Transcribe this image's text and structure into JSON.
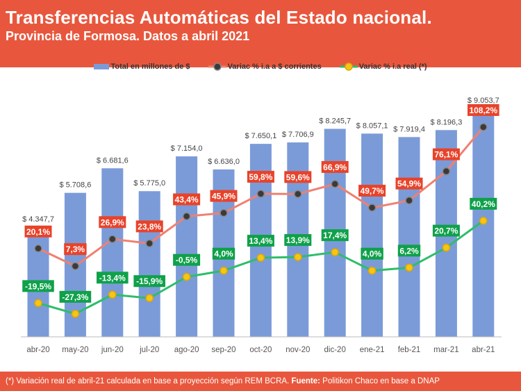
{
  "header": {
    "title": "Transferencias Automáticas del Estado nacional.",
    "subtitle": "Provincia de Formosa. Datos a abril 2021"
  },
  "footer": {
    "note": "(*) Variación real de abril-21 calculada en base a proyección según REM BCRA. ",
    "source_label": "Fuente:",
    "source": " Politikon Chaco en base a DNAP"
  },
  "colors": {
    "header": "#e8573d",
    "bars": "#7b9bd8",
    "nominal_line": "#f08070",
    "nominal_label": "#e8432a",
    "real_line": "#2ebd6a",
    "real_label": "#0fa14a",
    "marker_nominal": "#3a3a3a",
    "marker_real": "#f5c518"
  },
  "chart_data": {
    "type": "bar+line",
    "categories": [
      "abr-20",
      "may-20",
      "jun-20",
      "jul-20",
      "ago-20",
      "sep-20",
      "oct-20",
      "nov-20",
      "dic-20",
      "ene-21",
      "feb-21",
      "mar-21",
      "abr-21"
    ],
    "series": [
      {
        "name": "Total en millones de $",
        "type": "bar",
        "values": [
          4347.7,
          5708.6,
          6681.6,
          5775.0,
          7154.0,
          6636.0,
          7650.1,
          7706.9,
          8245.7,
          8057.1,
          7919.4,
          8196.3,
          9053.7
        ],
        "labels": [
          "$ 4.347,7",
          "$ 5.708,6",
          "$ 6.681,6",
          "$ 5.775,0",
          "$ 7.154,0",
          "$ 6.636,0",
          "$ 7.650,1",
          "$ 7.706,9",
          "$ 8.245,7",
          "$ 8.057,1",
          "$ 7.919,4",
          "$ 8.196,3",
          "$ 9.053,7"
        ]
      },
      {
        "name": "Variac % i.a a $ corrientes",
        "type": "line",
        "values": [
          20.1,
          7.3,
          26.9,
          23.8,
          43.4,
          45.9,
          59.8,
          59.6,
          66.9,
          49.7,
          54.9,
          76.1,
          108.2
        ],
        "labels": [
          "20,1%",
          "7,3%",
          "26,9%",
          "23,8%",
          "43,4%",
          "45,9%",
          "59,8%",
          "59,6%",
          "66,9%",
          "49,7%",
          "54,9%",
          "76,1%",
          "108,2%"
        ]
      },
      {
        "name": "Variac % i.a real (*)",
        "type": "line",
        "values": [
          -19.5,
          -27.3,
          -13.4,
          -15.9,
          -0.5,
          4.0,
          13.4,
          13.9,
          17.4,
          4.0,
          6.2,
          20.7,
          40.2
        ],
        "labels": [
          "-19,5%",
          "-27,3%",
          "-13,4%",
          "-15,9%",
          "-0,5%",
          "4,0%",
          "13,4%",
          "13,9%",
          "17,4%",
          "4,0%",
          "6,2%",
          "20,7%",
          "40,2%"
        ]
      }
    ],
    "ylim": [
      0,
      10600
    ],
    "ylim_secondary": [
      -44,
      150
    ],
    "grid": false,
    "legend": "top-center"
  }
}
